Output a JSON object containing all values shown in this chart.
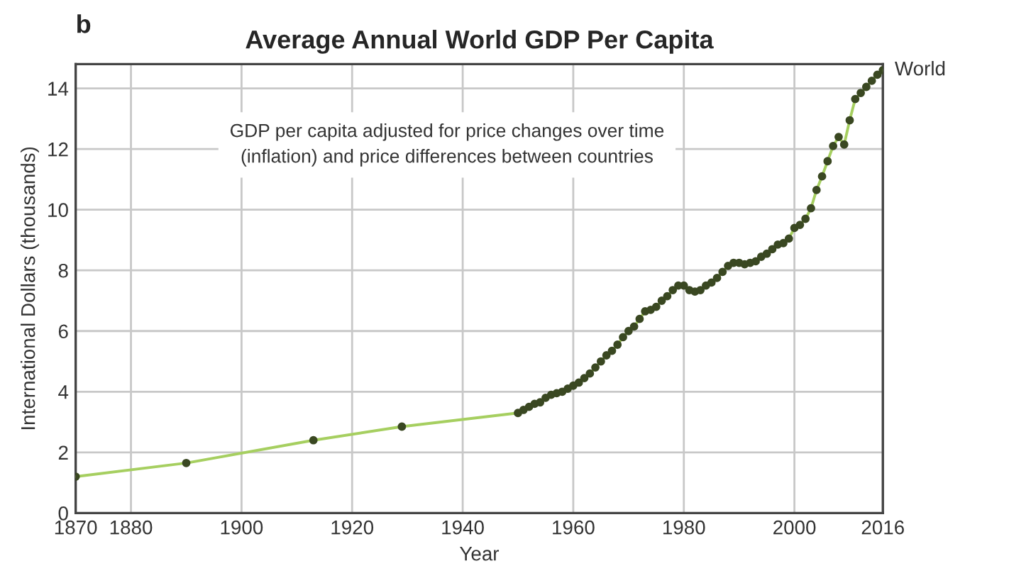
{
  "chart_data": {
    "type": "line",
    "title": "Average Annual World GDP Per Capita",
    "xlabel": "Year",
    "ylabel": "International Dollars (thousands)",
    "annotations": [
      "b",
      "GDP per capita adjusted for price changes over time\n(inflation) and price differences between countries"
    ],
    "series": [
      {
        "name": "World",
        "color": "#a6cf60",
        "x": [
          1870,
          1890,
          1913,
          1929,
          1950,
          1951,
          1952,
          1953,
          1954,
          1955,
          1956,
          1957,
          1958,
          1959,
          1960,
          1961,
          1962,
          1963,
          1964,
          1965,
          1966,
          1967,
          1968,
          1969,
          1970,
          1971,
          1972,
          1973,
          1974,
          1975,
          1976,
          1977,
          1978,
          1979,
          1980,
          1981,
          1982,
          1983,
          1984,
          1985,
          1986,
          1987,
          1988,
          1989,
          1990,
          1991,
          1992,
          1993,
          1994,
          1995,
          1996,
          1997,
          1998,
          1999,
          2000,
          2001,
          2002,
          2003,
          2004,
          2005,
          2006,
          2007,
          2008,
          2009,
          2010,
          2011,
          2012,
          2013,
          2014,
          2015,
          2016
        ],
        "values": [
          1.2,
          1.65,
          2.4,
          2.85,
          3.3,
          3.4,
          3.5,
          3.6,
          3.65,
          3.8,
          3.9,
          3.95,
          4.0,
          4.1,
          4.2,
          4.3,
          4.45,
          4.6,
          4.8,
          5.0,
          5.2,
          5.35,
          5.55,
          5.8,
          6.0,
          6.15,
          6.4,
          6.65,
          6.7,
          6.8,
          7.0,
          7.15,
          7.35,
          7.5,
          7.5,
          7.35,
          7.3,
          7.35,
          7.5,
          7.6,
          7.75,
          7.95,
          8.15,
          8.25,
          8.25,
          8.2,
          8.25,
          8.3,
          8.45,
          8.55,
          8.7,
          8.85,
          8.9,
          9.05,
          9.4,
          9.5,
          9.7,
          10.05,
          10.65,
          11.1,
          11.6,
          12.1,
          12.4,
          12.15,
          12.95,
          13.65,
          13.85,
          14.05,
          14.25,
          14.45,
          14.6
        ]
      }
    ],
    "xlim": [
      1870,
      2016
    ],
    "xticks": [
      1870,
      1880,
      1900,
      1920,
      1940,
      1960,
      1980,
      2000,
      2016
    ],
    "ylim": [
      0,
      14.8
    ],
    "yticks": [
      0,
      2,
      4,
      6,
      8,
      10,
      12,
      14
    ],
    "grid": true,
    "marker": "circle",
    "line_style": "solid",
    "legend": false
  }
}
